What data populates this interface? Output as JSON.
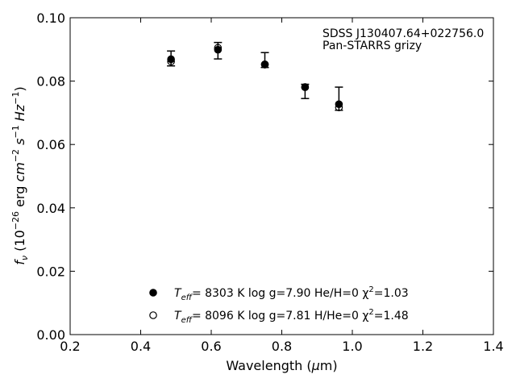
{
  "chart_data": {
    "type": "scatter",
    "title": "",
    "xlabel": "Wavelength (μm)",
    "ylabel": "fν (10⁻²⁶ erg cm⁻² s⁻¹ Hz⁻¹)",
    "xlim": [
      0.2,
      1.4
    ],
    "ylim": [
      0.0,
      0.1
    ],
    "xticks": [
      0.2,
      0.4,
      0.6,
      0.8,
      1.0,
      1.2,
      1.4
    ],
    "xtick_labels": [
      "0.2",
      "0.4",
      "0.6",
      "0.8",
      "1.0",
      "1.2",
      "1.4"
    ],
    "yticks": [
      0.0,
      0.02,
      0.04,
      0.06,
      0.08,
      0.1
    ],
    "ytick_labels": [
      "0.00",
      "0.02",
      "0.04",
      "0.06",
      "0.08",
      "0.10"
    ],
    "grid": false,
    "legend_position": "bottom-center",
    "annotation_lines": [
      "SDSS J130407.64+022756.0",
      "Pan-STARRS grizy"
    ],
    "series": [
      {
        "kind": "errorbar",
        "x": [
          0.486,
          0.619,
          0.752,
          0.866,
          0.962
        ],
        "y": [
          0.087,
          0.09,
          0.0855,
          0.0785,
          0.0743
        ],
        "yerr_low": [
          0.0022,
          0.003,
          0.0012,
          0.004,
          0.0035
        ],
        "yerr_high": [
          0.0025,
          0.0022,
          0.0035,
          0.0005,
          0.0038
        ]
      },
      {
        "kind": "model",
        "name_parts": {
          "teff_label": "T",
          "teff_sub": "eff",
          "rest": "=  8303 K  log g=7.90  He/H=0  χ",
          "sup": "2",
          "tail": "=1.03"
        },
        "marker": "filled-circle",
        "color": "#000000",
        "x": [
          0.486,
          0.619,
          0.752,
          0.866,
          0.962
        ],
        "y": [
          0.0869,
          0.0899,
          0.0853,
          0.0781,
          0.0727
        ]
      },
      {
        "kind": "model",
        "name_parts": {
          "teff_label": "T",
          "teff_sub": "eff",
          "rest": "=  8096 K  log g=7.81  H/He=0  χ",
          "sup": "2",
          "tail": "=1.48"
        },
        "marker": "open-circle",
        "color": "#000000",
        "x": [
          0.486,
          0.619,
          0.752,
          0.866,
          0.962
        ],
        "y": [
          0.0862,
          0.0905,
          0.0852,
          0.0781,
          0.0717
        ]
      }
    ]
  }
}
